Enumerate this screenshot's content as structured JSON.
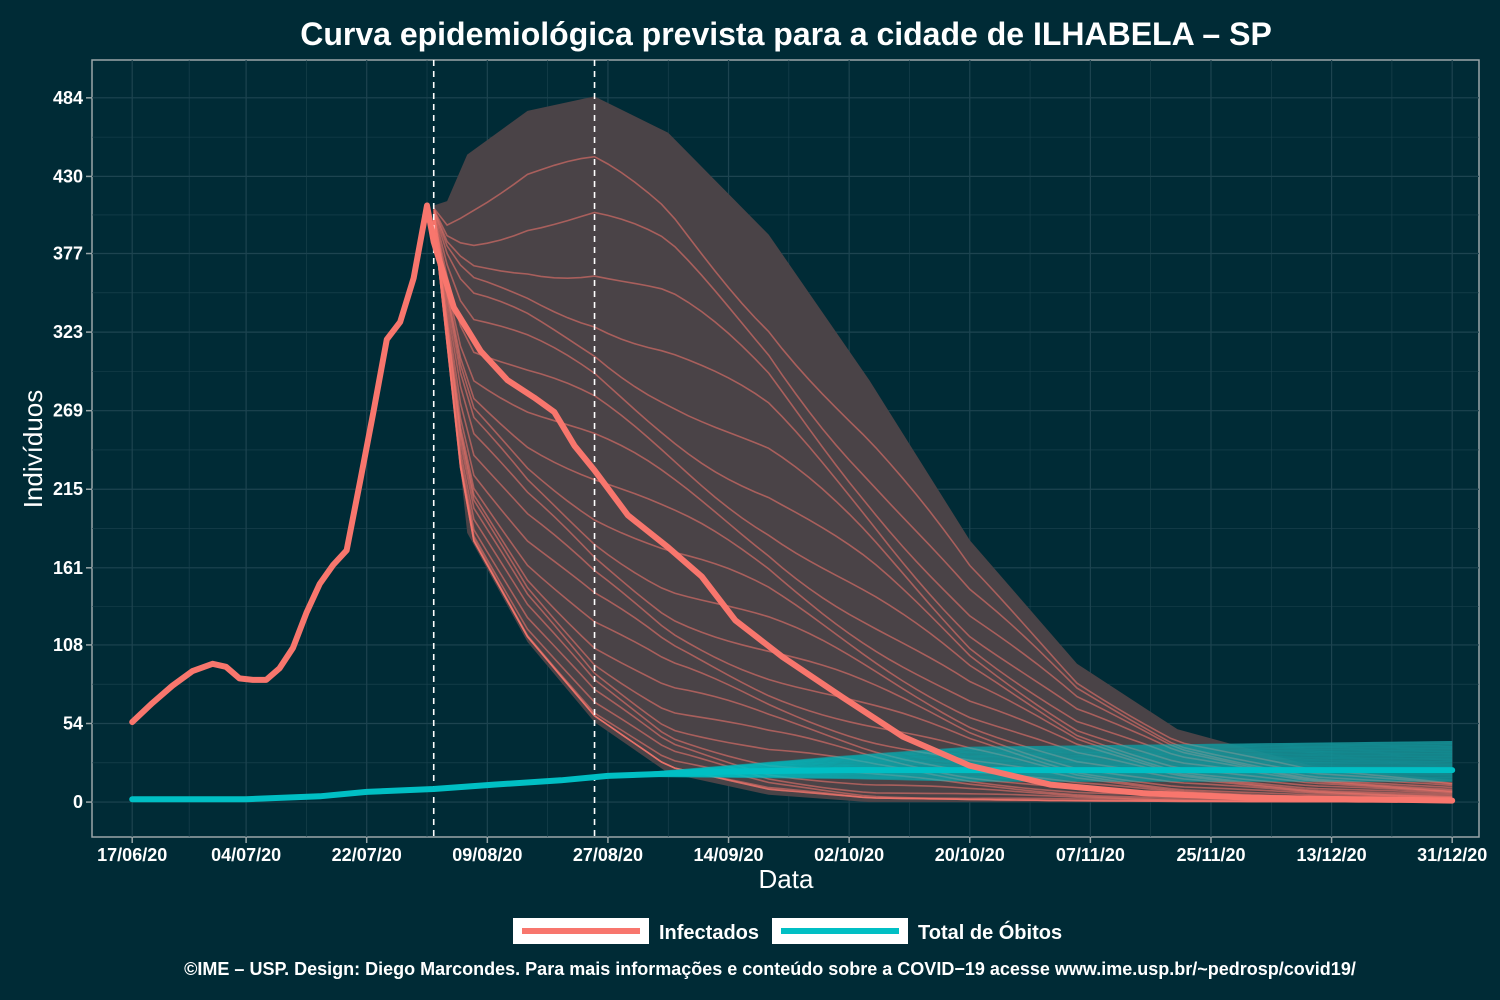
{
  "colors": {
    "background": "#002b36",
    "infected": "#f8766d",
    "deaths": "#00bfc4",
    "ribbon": "#4a4347",
    "grid": "#1d4450",
    "frame": "#9aa6a8",
    "text": "#ffffff"
  },
  "chart_data": {
    "type": "line",
    "title": "Curva epidemiológica prevista para a cidade de ILHABELA – SP",
    "xlabel": "Data",
    "ylabel": "Indivíduos",
    "x_tick_labels": [
      "17/06/20",
      "04/07/20",
      "22/07/20",
      "09/08/20",
      "27/08/20",
      "14/09/20",
      "02/10/20",
      "20/10/20",
      "07/11/20",
      "25/11/20",
      "13/12/20",
      "31/12/20"
    ],
    "y_ticks": [
      0,
      54,
      108,
      161,
      215,
      269,
      323,
      377,
      430,
      484
    ],
    "xlim": [
      "2020-06-11",
      "2021-01-04"
    ],
    "ylim": [
      -24,
      510
    ],
    "grid": true,
    "reference_lines": [
      "2020-08-01",
      "2020-08-25"
    ],
    "series": [
      {
        "name": "Infectados",
        "role": "observed_and_forecast_median",
        "points": [
          [
            "2020-06-17",
            55
          ],
          [
            "2020-06-20",
            68
          ],
          [
            "2020-06-23",
            80
          ],
          [
            "2020-06-26",
            90
          ],
          [
            "2020-06-29",
            95
          ],
          [
            "2020-07-01",
            93
          ],
          [
            "2020-07-03",
            85
          ],
          [
            "2020-07-05",
            84
          ],
          [
            "2020-07-07",
            84
          ],
          [
            "2020-07-09",
            92
          ],
          [
            "2020-07-11",
            106
          ],
          [
            "2020-07-13",
            130
          ],
          [
            "2020-07-15",
            150
          ],
          [
            "2020-07-17",
            163
          ],
          [
            "2020-07-19",
            173
          ],
          [
            "2020-07-21",
            220
          ],
          [
            "2020-07-23",
            268
          ],
          [
            "2020-07-25",
            318
          ],
          [
            "2020-07-27",
            330
          ],
          [
            "2020-07-29",
            360
          ],
          [
            "2020-07-31",
            410
          ],
          [
            "2020-08-01",
            385
          ],
          [
            "2020-08-04",
            340
          ],
          [
            "2020-08-08",
            310
          ],
          [
            "2020-08-12",
            290
          ],
          [
            "2020-08-16",
            278
          ],
          [
            "2020-08-19",
            268
          ],
          [
            "2020-08-22",
            245
          ],
          [
            "2020-08-25",
            228
          ],
          [
            "2020-08-30",
            197
          ],
          [
            "2020-09-05",
            175
          ],
          [
            "2020-09-10",
            155
          ],
          [
            "2020-09-15",
            125
          ],
          [
            "2020-09-22",
            100
          ],
          [
            "2020-10-01",
            72
          ],
          [
            "2020-10-10",
            45
          ],
          [
            "2020-10-20",
            25
          ],
          [
            "2020-11-01",
            12
          ],
          [
            "2020-11-15",
            6
          ],
          [
            "2020-12-01",
            3
          ],
          [
            "2020-12-31",
            1
          ]
        ]
      },
      {
        "name": "Total de Óbitos",
        "role": "observed_and_forecast_median",
        "points": [
          [
            "2020-06-17",
            2
          ],
          [
            "2020-07-04",
            2
          ],
          [
            "2020-07-15",
            4
          ],
          [
            "2020-07-22",
            7
          ],
          [
            "2020-08-01",
            9
          ],
          [
            "2020-08-10",
            12
          ],
          [
            "2020-08-20",
            15
          ],
          [
            "2020-08-27",
            18
          ],
          [
            "2020-09-14",
            21
          ],
          [
            "2020-10-02",
            22
          ],
          [
            "2020-10-20",
            22
          ],
          [
            "2020-12-31",
            22
          ]
        ]
      }
    ],
    "forecast_band_infected": {
      "upper": [
        [
          "2020-08-01",
          410
        ],
        [
          "2020-08-03",
          413
        ],
        [
          "2020-08-06",
          445
        ],
        [
          "2020-08-15",
          475
        ],
        [
          "2020-08-25",
          485
        ],
        [
          "2020-09-05",
          460
        ],
        [
          "2020-09-20",
          390
        ],
        [
          "2020-10-05",
          290
        ],
        [
          "2020-10-20",
          180
        ],
        [
          "2020-11-05",
          95
        ],
        [
          "2020-11-20",
          50
        ],
        [
          "2020-12-10",
          25
        ],
        [
          "2020-12-31",
          15
        ]
      ],
      "lower": [
        [
          "2020-08-01",
          400
        ],
        [
          "2020-08-06",
          185
        ],
        [
          "2020-08-15",
          110
        ],
        [
          "2020-08-25",
          55
        ],
        [
          "2020-09-05",
          20
        ],
        [
          "2020-09-20",
          5
        ],
        [
          "2020-10-05",
          0
        ],
        [
          "2020-12-31",
          0
        ]
      ]
    },
    "forecast_band_deaths": {
      "upper": [
        [
          "2020-08-27",
          18
        ],
        [
          "2020-10-02",
          32
        ],
        [
          "2020-10-20",
          38
        ],
        [
          "2020-12-31",
          42
        ]
      ],
      "lower": [
        [
          "2020-08-27",
          18
        ],
        [
          "2020-10-02",
          16
        ],
        [
          "2020-10-20",
          14
        ],
        [
          "2020-12-31",
          14
        ]
      ]
    },
    "legend": [
      {
        "name": "Infectados",
        "color": "#f8766d"
      },
      {
        "name": "Total de Óbitos",
        "color": "#00bfc4"
      }
    ],
    "legend_position": "bottom"
  },
  "footer": "©IME – USP. Design: Diego Marcondes. Para mais informações e conteúdo sobre a COVID−19 acesse www.ime.usp.br/~pedrosp/covid19/"
}
